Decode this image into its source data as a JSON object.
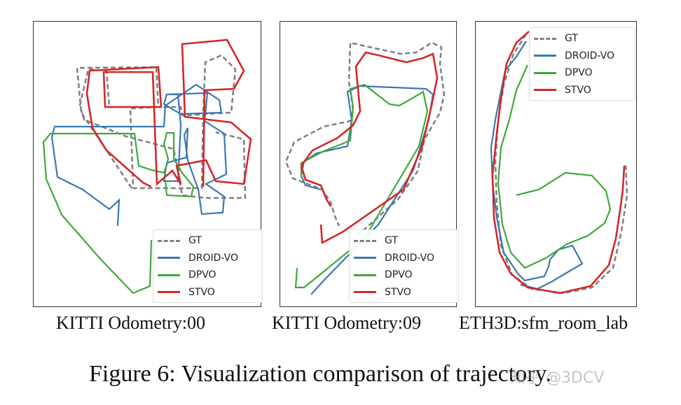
{
  "colors": {
    "gt": "#7f7f7f",
    "droid": "#3a78b0",
    "dpvo": "#3fa83a",
    "stvo": "#d62728"
  },
  "legend": {
    "gt": "GT",
    "droid": "DROID-VO",
    "dpvo": "DPVO",
    "stvo": "STVO"
  },
  "subcaptions": [
    "KITTI Odometry:00",
    "KITTI Odometry:09",
    "ETH3D:sfm_room_lab"
  ],
  "figure_caption": "Figure 6: Visualization comparison of trajectory.",
  "watermark": "知乎 @3DCV",
  "chart_data": [
    {
      "type": "line",
      "title": "KITTI Odometry:00",
      "series": [
        {
          "name": "GT",
          "style": "dashed"
        },
        {
          "name": "DROID-VO"
        },
        {
          "name": "DPVO"
        },
        {
          "name": "STVO"
        }
      ]
    },
    {
      "type": "line",
      "title": "KITTI Odometry:09",
      "series": [
        {
          "name": "GT",
          "style": "dashed"
        },
        {
          "name": "DROID-VO"
        },
        {
          "name": "DPVO"
        },
        {
          "name": "STVO"
        }
      ]
    },
    {
      "type": "line",
      "title": "ETH3D:sfm_room_lab",
      "series": [
        {
          "name": "GT",
          "style": "dashed"
        },
        {
          "name": "DROID-VO"
        },
        {
          "name": "DPVO"
        },
        {
          "name": "STVO"
        }
      ]
    }
  ]
}
